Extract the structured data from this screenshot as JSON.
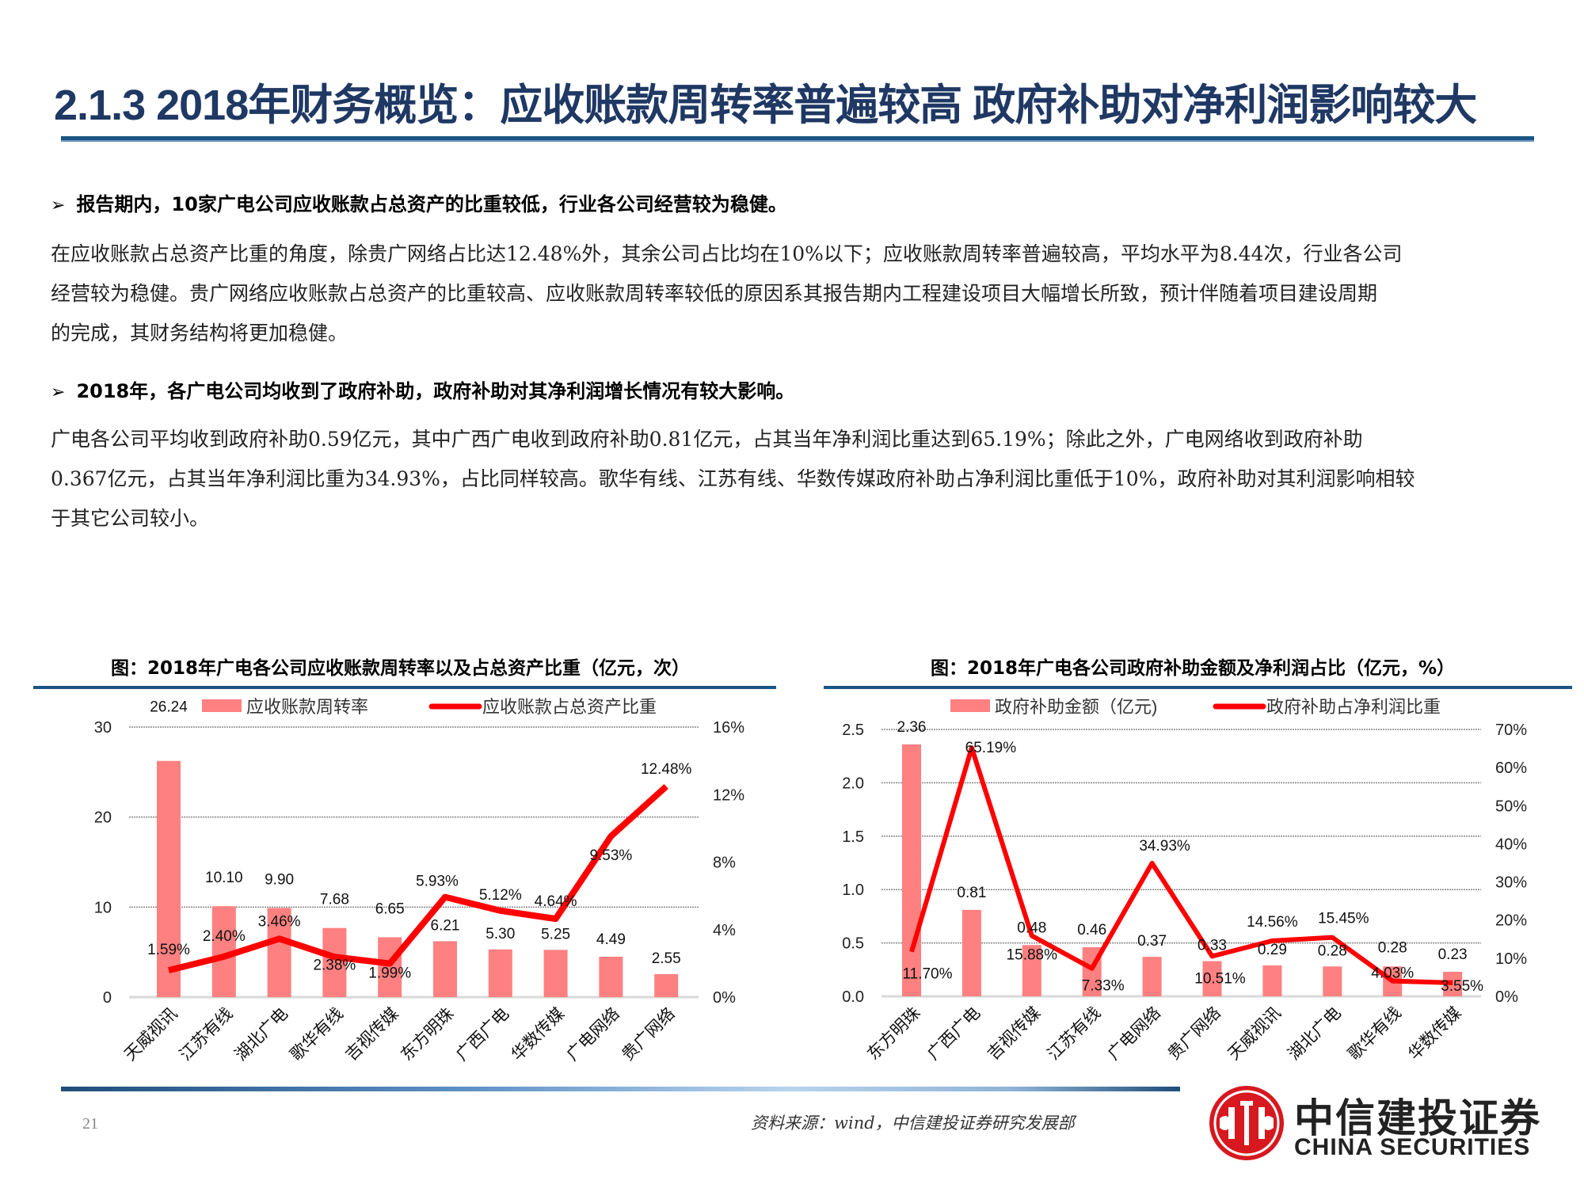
{
  "header": {
    "title": "2.1.3 2018年财务概览：应收账款周转率普遍较高 政府补助对净利润影响较大"
  },
  "body": {
    "bullet1": "报告期内，10家广电公司应收账款占总资产的比重较低，行业各公司经营较为稳健。",
    "para1_lines": [
      "在应收账款占总资产比重的角度，除贵广网络占比达12.48%外，其余公司占比均在10%以下；应收账款周转率普遍较高，平均水平为8.44次，行业各公司",
      "经营较为稳健。贵广网络应收账款占总资产的比重较高、应收账款周转率较低的原因系其报告期内工程建设项目大幅增长所致，预计伴随着项目建设周期",
      "的完成，其财务结构将更加稳健。"
    ],
    "bullet2": "2018年，各广电公司均收到了政府补助，政府补助对其净利润增长情况有较大影响。",
    "para2_lines": [
      "广电各公司平均收到政府补助0.59亿元，其中广西广电收到政府补助0.81亿元，占其当年净利润比重达到65.19%；除此之外，广电网络收到政府补助",
      "0.367亿元，占其当年净利润比重为34.93%，占比同样较高。歌华有线、江苏有线、华数传媒政府补助占净利润比重低于10%，政府补助对其利润影响相较",
      "于其它公司较小。"
    ],
    "bullet_icon": "arrow-bullet-icon"
  },
  "colors": {
    "title": "#1f3864",
    "rule": "#1a5584",
    "bar": "#ff8080",
    "line": "#ff0000",
    "grid": "#888888",
    "logo_red": "#d7191f"
  },
  "chart_data": [
    {
      "type": "bar+line",
      "title": "图：2018年广电各公司应收账款周转率以及占总资产比重（亿元，次）",
      "categories": [
        "天威视讯",
        "江苏有线",
        "湖北广电",
        "歌华有线",
        "吉视传媒",
        "东方明珠",
        "广西广电",
        "华数传媒",
        "广电网络",
        "贵广网络"
      ],
      "series": [
        {
          "name": "应收账款周转率",
          "type": "bar",
          "axis": "left",
          "values": [
            26.24,
            10.1,
            9.9,
            7.68,
            6.65,
            6.21,
            5.3,
            5.25,
            4.49,
            2.55
          ],
          "labels": [
            "26.24",
            "10.10",
            "9.90",
            "7.68",
            "6.65",
            "6.21",
            "5.30",
            "5.25",
            "4.49",
            "2.55"
          ]
        },
        {
          "name": "应收账款占总资产比重",
          "type": "line",
          "axis": "right",
          "values": [
            1.59,
            2.4,
            3.46,
            2.38,
            1.99,
            5.93,
            5.12,
            4.64,
            9.53,
            12.48
          ],
          "labels": [
            "1.59%",
            "2.40%",
            "3.46%",
            "2.38%",
            "1.99%",
            "5.93%",
            "5.12%",
            "4.64%",
            "9.53%",
            "12.48%"
          ]
        }
      ],
      "left_axis": {
        "min": 0,
        "max": 30,
        "ticks": [
          "0",
          "10",
          "20",
          "30"
        ]
      },
      "right_axis": {
        "min": 0,
        "max": 16,
        "ticks": [
          "0%",
          "4%",
          "8%",
          "12%",
          "16%"
        ]
      },
      "grid": true,
      "legend_position": "top"
    },
    {
      "type": "bar+line",
      "title": "图：2018年广电各公司政府补助金额及净利润占比（亿元，%）",
      "categories": [
        "东方明珠",
        "广西广电",
        "吉视传媒",
        "江苏有线",
        "广电网络",
        "贵广网络",
        "天威视讯",
        "湖北广电",
        "歌华有线",
        "华数传媒"
      ],
      "series": [
        {
          "name": "政府补助金额（亿元)",
          "type": "bar",
          "axis": "left",
          "values": [
            2.36,
            0.81,
            0.48,
            0.46,
            0.37,
            0.33,
            0.29,
            0.28,
            0.28,
            0.23
          ],
          "labels": [
            "2.36",
            "0.81",
            "0.48",
            "0.46",
            "0.37",
            "0.33",
            "0.29",
            "0.28",
            "0.28",
            "0.23"
          ]
        },
        {
          "name": "政府补助占净利润比重",
          "type": "line",
          "axis": "right",
          "values": [
            11.7,
            65.19,
            15.88,
            7.33,
            34.93,
            10.51,
            14.56,
            15.45,
            4.03,
            3.55
          ],
          "labels": [
            "11.70%",
            "65.19%",
            "15.88%",
            "7.33%",
            "34.93%",
            "10.51%",
            "14.56%",
            "15.45%",
            "4.03%",
            "3.55%"
          ]
        }
      ],
      "left_axis": {
        "min": 0,
        "max": 2.5,
        "ticks": [
          "0.0",
          "0.5",
          "1.0",
          "1.5",
          "2.0",
          "2.5"
        ]
      },
      "right_axis": {
        "min": 0,
        "max": 70,
        "ticks": [
          "0%",
          "10%",
          "20%",
          "30%",
          "40%",
          "50%",
          "60%",
          "70%"
        ]
      },
      "grid": true,
      "legend_position": "top"
    }
  ],
  "footer": {
    "page_number": "21",
    "source": "资料来源：wind，中信建投证券研究发展部",
    "logo_cn": "中信建投证券",
    "logo_en": "CHINA SECURITIES",
    "logo_icon": "china-securities-logo-icon"
  }
}
